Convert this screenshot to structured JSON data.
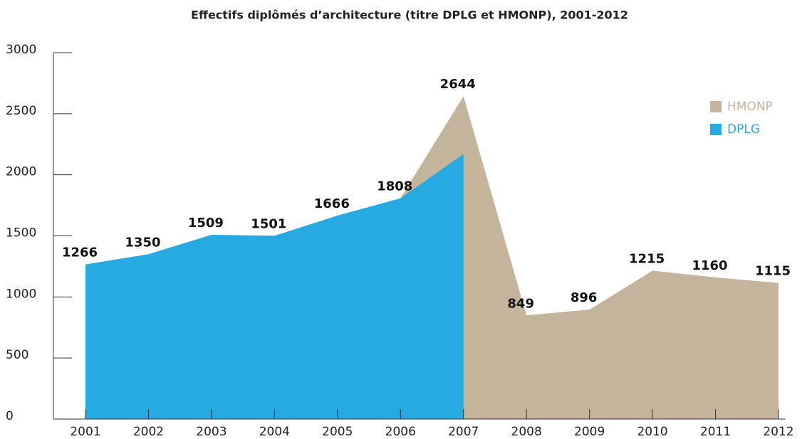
{
  "chart_data": {
    "type": "stacked_area",
    "title": "Effectifs diplômés d’architecture (titre DPLG et HMONP), 2001-2012",
    "x": [
      "2001",
      "2002",
      "2003",
      "2004",
      "2005",
      "2006",
      "2007",
      "2008",
      "2009",
      "2010",
      "2011",
      "2012"
    ],
    "series": [
      {
        "name": "DPLG",
        "color": "#27a9e1",
        "values": [
          1266,
          1350,
          1509,
          1501,
          1666,
          1808,
          2170,
          null,
          null,
          null,
          null,
          null
        ]
      },
      {
        "name": "HMONP",
        "color": "#c4b49b",
        "values": [
          null,
          null,
          null,
          null,
          null,
          0,
          474,
          849,
          896,
          1215,
          1160,
          1115
        ]
      }
    ],
    "totals": [
      1266,
      1350,
      1509,
      1501,
      1666,
      1808,
      2644,
      849,
      896,
      1215,
      1160,
      1115
    ],
    "ylim": [
      0,
      3000
    ],
    "yticks": [
      0,
      500,
      1000,
      1500,
      2000,
      2500,
      3000
    ],
    "legend": "upper right"
  }
}
